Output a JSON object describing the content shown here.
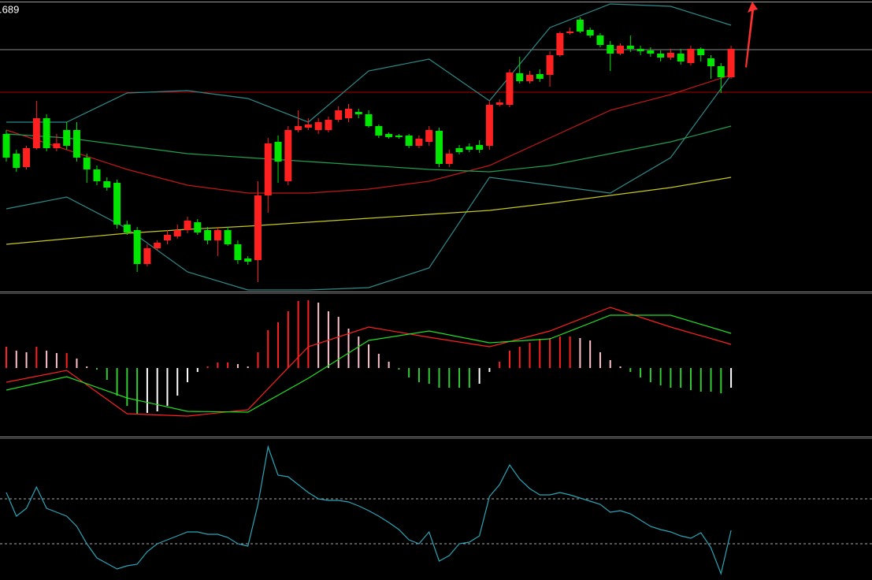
{
  "chart_data": [
    {
      "type": "candlestick",
      "price_label": ".689",
      "xlim": [
        -0.626,
        86.0
      ],
      "ylim": [
        0,
        365
      ],
      "up_color": "#ff2020",
      "down_color": "#00e600",
      "open": [
        200,
        175,
        158,
        182,
        220,
        182,
        205,
        205,
        170,
        155,
        140,
        138,
        85,
        78,
        35,
        55,
        65,
        70,
        78,
        88,
        78,
        65,
        78,
        60,
        42,
        40,
        122,
        190,
        140,
        205,
        208,
        205,
        205,
        218,
        220,
        228,
        225,
        210,
        200,
        198,
        198,
        185,
        190,
        204,
        162,
        182,
        184,
        186,
        185,
        237,
        237,
        277,
        267,
        276,
        275,
        300,
        328,
        345,
        332,
        325,
        313,
        302,
        312,
        308,
        306,
        302,
        297,
        302,
        290,
        308,
        296,
        286,
        272
      ],
      "high": [
        205,
        180,
        185,
        242,
        225,
        200,
        215,
        215,
        175,
        160,
        145,
        142,
        90,
        82,
        60,
        65,
        78,
        85,
        95,
        92,
        82,
        82,
        82,
        65,
        45,
        140,
        195,
        198,
        210,
        230,
        220,
        220,
        222,
        235,
        238,
        232,
        230,
        212,
        202,
        200,
        200,
        198,
        210,
        208,
        180,
        186,
        188,
        192,
        242,
        244,
        282,
        298,
        280,
        282,
        305,
        330,
        335,
        348,
        335,
        328,
        318,
        315,
        325,
        312,
        310,
        306,
        308,
        308,
        312,
        310,
        300,
        290,
        312
      ],
      "low": [
        165,
        152,
        155,
        180,
        178,
        178,
        180,
        165,
        138,
        135,
        128,
        80,
        72,
        25,
        32,
        52,
        60,
        67,
        74,
        72,
        60,
        45,
        58,
        35,
        34,
        12,
        100,
        138,
        135,
        202,
        205,
        200,
        202,
        215,
        215,
        220,
        208,
        195,
        194,
        194,
        182,
        182,
        185,
        158,
        158,
        174,
        177,
        176,
        180,
        235,
        234,
        264,
        264,
        266,
        260,
        298,
        326,
        328,
        322,
        310,
        280,
        300,
        304,
        300,
        298,
        292,
        294,
        288,
        287,
        292,
        270,
        252,
        270
      ],
      "close": [
        170,
        157,
        182,
        220,
        182,
        188,
        185,
        170,
        155,
        140,
        132,
        85,
        75,
        35,
        55,
        62,
        72,
        78,
        90,
        75,
        65,
        78,
        60,
        40,
        38,
        122,
        188,
        165,
        205,
        210,
        212,
        215,
        218,
        230,
        232,
        225,
        210,
        198,
        196,
        196,
        185,
        194,
        205,
        162,
        175,
        177,
        180,
        180,
        237,
        240,
        278,
        267,
        275,
        270,
        300,
        328,
        330,
        330,
        325,
        313,
        302,
        312,
        308,
        305,
        302,
        297,
        303,
        292,
        308,
        300,
        286,
        272,
        308
      ],
      "levels": [
        {
          "value": 307,
          "color": "#8a8a8a"
        },
        {
          "value": 253,
          "color": "#b00000"
        }
      ],
      "lines": [
        {
          "color": "#2e8b8b",
          "x": [
            0,
            6,
            12,
            18,
            24,
            30,
            36,
            42,
            48,
            54,
            60,
            66,
            72
          ],
          "values": [
            215,
            215,
            252,
            255,
            245,
            215,
            280,
            295,
            242,
            335,
            365,
            362,
            338
          ]
        },
        {
          "color": "#2e8b8b",
          "x": [
            0,
            6,
            12,
            18,
            24,
            30,
            36,
            42,
            48,
            54,
            60,
            66,
            72
          ],
          "values": [
            105,
            120,
            80,
            25,
            2,
            2,
            5,
            30,
            145,
            135,
            125,
            170,
            275
          ]
        },
        {
          "color": "#c01818",
          "x": [
            0,
            6,
            12,
            18,
            24,
            30,
            36,
            42,
            48,
            54,
            60,
            66,
            72
          ],
          "values": [
            205,
            180,
            155,
            135,
            125,
            125,
            130,
            140,
            160,
            195,
            230,
            250,
            275
          ]
        },
        {
          "color": "#20a050",
          "x": [
            0,
            6,
            12,
            18,
            24,
            30,
            36,
            42,
            48,
            54,
            60,
            66,
            72
          ],
          "values": [
            200,
            195,
            185,
            175,
            170,
            165,
            160,
            155,
            152,
            160,
            175,
            190,
            210
          ]
        },
        {
          "color": "#c8c820",
          "x": [
            0,
            6,
            12,
            18,
            24,
            30,
            36,
            42,
            48,
            54,
            60,
            66,
            72
          ],
          "values": [
            60,
            67,
            74,
            79,
            83,
            88,
            93,
            98,
            103,
            112,
            122,
            132,
            145
          ]
        }
      ]
    },
    {
      "type": "bar",
      "xlim": [
        -0.626,
        86.0
      ],
      "ylim": [
        -86,
        94
      ],
      "colors": {
        "up_rising": "#ff2020",
        "up_falling": "#ffc0cb",
        "down_falling": "#33cc33",
        "down_rising": "#ffffff"
      },
      "values": [
        27,
        22,
        20,
        27,
        22,
        19,
        19,
        12,
        2,
        -2,
        -15,
        -35,
        -48,
        -58,
        -57,
        -55,
        -48,
        -35,
        -18,
        -5,
        2,
        7,
        7,
        5,
        2,
        20,
        48,
        58,
        72,
        85,
        86,
        83,
        72,
        65,
        50,
        40,
        30,
        18,
        8,
        -2,
        -12,
        -18,
        -20,
        -25,
        -25,
        -25,
        -25,
        -20,
        -5,
        8,
        22,
        27,
        32,
        37,
        38,
        40,
        40,
        38,
        35,
        20,
        10,
        2,
        -5,
        -12,
        -18,
        -22,
        -25,
        -25,
        -28,
        -30,
        -30,
        -32,
        -25
      ],
      "lines": [
        {
          "color": "#ff2020",
          "x": [
            0,
            6,
            12,
            18,
            24,
            30,
            36,
            42,
            48,
            54,
            60,
            66,
            72
          ],
          "values": [
            -18,
            -3,
            -58,
            -61,
            -53,
            27,
            52,
            39,
            27,
            47,
            77,
            52,
            30
          ]
        },
        {
          "color": "#20e020",
          "x": [
            0,
            6,
            12,
            18,
            24,
            30,
            36,
            42,
            48,
            54,
            60,
            66,
            72
          ],
          "values": [
            -28,
            -11,
            -38,
            -55,
            -56,
            -13,
            35,
            47,
            32,
            37,
            67,
            67,
            44
          ]
        }
      ]
    },
    {
      "type": "line",
      "xlim": [
        -0.626,
        86.0
      ],
      "ylim": [
        0,
        179
      ],
      "color": "#2aa6b8",
      "levels": [
        103,
        46
      ],
      "values": [
        111,
        81,
        91,
        118,
        91,
        86,
        81,
        68,
        46,
        28,
        21,
        14,
        18,
        20,
        36,
        46,
        51,
        56,
        61,
        61,
        58,
        58,
        54,
        46,
        43,
        96,
        169,
        133,
        131,
        121,
        111,
        103,
        101,
        101,
        99,
        94,
        88,
        81,
        73,
        64,
        51,
        46,
        61,
        24,
        31,
        46,
        48,
        56,
        106,
        121,
        146,
        128,
        116,
        108,
        108,
        111,
        108,
        104,
        100,
        96,
        86,
        88,
        84,
        76,
        68,
        64,
        61,
        56,
        53,
        60,
        41,
        8,
        63
      ]
    }
  ]
}
